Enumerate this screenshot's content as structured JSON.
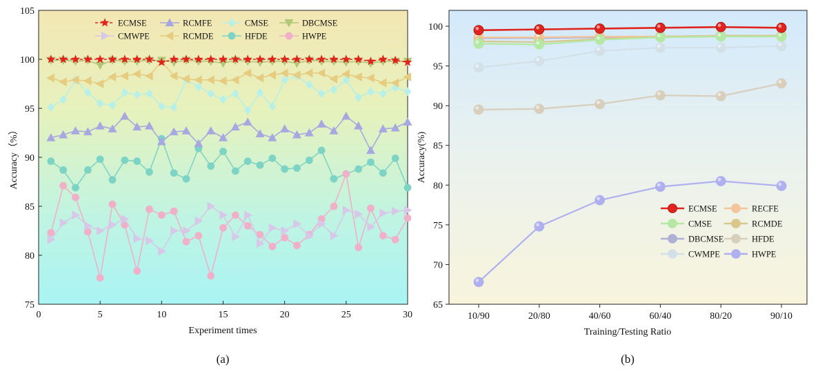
{
  "chart_data": [
    {
      "type": "line",
      "panel_label": "(a)",
      "xlabel": "Experiment times",
      "ylabel": "Accuracy（%）",
      "xlim": [
        0,
        30
      ],
      "ylim": [
        75,
        105
      ],
      "xticks": [
        0,
        5,
        10,
        15,
        20,
        25,
        30
      ],
      "yticks": [
        75,
        80,
        85,
        90,
        95,
        100,
        105
      ],
      "background": "vertical gradient yellow to cyan",
      "legend_position": "top",
      "x": [
        1,
        2,
        3,
        4,
        5,
        6,
        7,
        8,
        9,
        10,
        11,
        12,
        13,
        14,
        15,
        16,
        17,
        18,
        19,
        20,
        21,
        22,
        23,
        24,
        25,
        26,
        27,
        28,
        29,
        30
      ],
      "series": [
        {
          "name": "ECMSE",
          "color": "#e0231c",
          "marker": "star",
          "values": [
            100,
            100,
            100,
            100,
            100,
            100,
            100,
            100,
            100,
            99.7,
            100,
            100,
            100,
            100,
            100,
            100,
            100,
            100,
            100,
            100,
            100,
            100,
            100,
            100,
            100,
            100,
            99.8,
            100,
            99.9,
            99.7
          ]
        },
        {
          "name": "RCMFE",
          "color": "#a8a8e0",
          "marker": "triangle-up",
          "values": [
            92.0,
            92.3,
            92.7,
            92.6,
            93.2,
            92.9,
            94.2,
            93.1,
            93.2,
            91.6,
            92.6,
            92.7,
            91.4,
            92.7,
            92.0,
            93.1,
            93.6,
            92.4,
            92.0,
            92.9,
            92.3,
            92.5,
            93.4,
            92.7,
            94.2,
            93.2,
            90.7,
            92.9,
            93.0,
            93.6
          ]
        },
        {
          "name": "CMSE",
          "color": "#b6f0e8",
          "marker": "diamond",
          "values": [
            95.1,
            95.9,
            97.9,
            96.6,
            95.5,
            95.3,
            96.6,
            96.4,
            96.5,
            95.2,
            95.1,
            97.9,
            97.2,
            96.5,
            95.9,
            96.5,
            94.8,
            96.6,
            95.2,
            97.9,
            98.3,
            97.4,
            96.5,
            96.9,
            97.9,
            96.1,
            96.7,
            96.5,
            97.1,
            96.7
          ]
        },
        {
          "name": "DBCMSE",
          "color": "#b0c878",
          "marker": "triangle-down",
          "values": [
            99.9,
            99.9,
            99.8,
            99.9,
            99.4,
            99.9,
            99.8,
            99.8,
            99.9,
            99.9,
            99.7,
            99.9,
            99.8,
            99.8,
            99.6,
            99.9,
            99.8,
            99.7,
            99.8,
            99.8,
            99.6,
            99.9,
            99.8,
            99.8,
            99.7,
            99.8,
            99.6,
            99.8,
            99.8,
            99.8
          ]
        },
        {
          "name": "CMWPE",
          "color": "#d8c8e8",
          "marker": "triangle-right",
          "values": [
            81.6,
            83.3,
            84.1,
            83.0,
            82.5,
            83.1,
            83.7,
            81.7,
            81.5,
            80.4,
            82.5,
            82.5,
            83.5,
            85.0,
            84.1,
            81.9,
            84.1,
            81.2,
            82.8,
            82.5,
            83.2,
            82.0,
            83.2,
            82.0,
            84.6,
            84.2,
            82.9,
            84.3,
            84.5,
            84.6
          ]
        },
        {
          "name": "RCMDE",
          "color": "#e6cc80",
          "marker": "triangle-left",
          "values": [
            98.1,
            97.7,
            97.9,
            97.8,
            97.5,
            98.2,
            98.3,
            98.5,
            98.3,
            99.8,
            98.3,
            98.0,
            97.9,
            97.9,
            97.8,
            97.9,
            98.6,
            98.1,
            98.4,
            98.6,
            98.4,
            98.6,
            98.6,
            98.0,
            98.5,
            98.2,
            98.1,
            97.6,
            97.6,
            98.2
          ]
        },
        {
          "name": "HFDE",
          "color": "#7ed4c4",
          "marker": "circle",
          "values": [
            89.6,
            88.7,
            86.9,
            88.7,
            89.8,
            87.7,
            89.7,
            89.6,
            88.5,
            91.9,
            88.4,
            87.8,
            90.9,
            89.1,
            90.6,
            88.6,
            89.6,
            89.2,
            89.9,
            88.8,
            88.9,
            89.7,
            90.7,
            87.8,
            88.3,
            88.8,
            89.5,
            88.4,
            89.9,
            86.9
          ]
        },
        {
          "name": "HWPE",
          "color": "#f0b0c8",
          "marker": "circle",
          "values": [
            82.3,
            87.1,
            85.9,
            82.4,
            77.7,
            85.2,
            83.1,
            78.4,
            84.7,
            84.1,
            84.5,
            81.4,
            82.0,
            77.9,
            82.8,
            84.1,
            83.0,
            82.1,
            80.9,
            81.8,
            81.0,
            82.1,
            83.7,
            85.0,
            88.3,
            80.8,
            84.8,
            82.0,
            81.6,
            83.8
          ]
        }
      ]
    },
    {
      "type": "line",
      "panel_label": "(b)",
      "xlabel": "Training/Testing Ratio",
      "ylabel": "Accuracy(%)",
      "ylim": [
        65,
        102
      ],
      "yticks": [
        65,
        70,
        75,
        80,
        85,
        90,
        95,
        100
      ],
      "categories": [
        "10/90",
        "20/80",
        "40/60",
        "60/40",
        "80/20",
        "90/10"
      ],
      "background": "vertical gradient light blue to light yellow",
      "legend_position": "lower-right",
      "series": [
        {
          "name": "ECMSE",
          "color": "#e0231c",
          "values": [
            99.5,
            99.6,
            99.7,
            99.8,
            99.9,
            99.8
          ]
        },
        {
          "name": "RECFE",
          "color": "#f4c49a",
          "values": [
            98.6,
            98.6,
            98.7,
            98.7,
            98.8,
            98.8
          ]
        },
        {
          "name": "CMSE",
          "color": "#b4e8a4",
          "values": [
            97.8,
            97.7,
            98.3,
            98.6,
            98.7,
            98.7
          ]
        },
        {
          "name": "RCMDE",
          "color": "#d8c88c",
          "values": [
            98.1,
            98.0,
            98.4,
            98.7,
            98.8,
            98.8
          ]
        },
        {
          "name": "DBCMSE",
          "color": "#b0b0d4",
          "values": [
            98.5,
            98.5,
            98.6,
            98.7,
            98.8,
            98.8
          ]
        },
        {
          "name": "HFDE",
          "color": "#d8cebc",
          "values": [
            89.5,
            89.6,
            90.2,
            91.3,
            91.2,
            92.8
          ]
        },
        {
          "name": "CWMPE",
          "color": "#d4e0e8",
          "values": [
            94.8,
            95.6,
            96.9,
            97.3,
            97.3,
            97.5
          ]
        },
        {
          "name": "HWPE",
          "color": "#b0b0f0",
          "values": [
            67.8,
            74.8,
            78.1,
            79.8,
            80.5,
            79.9
          ]
        }
      ]
    }
  ]
}
